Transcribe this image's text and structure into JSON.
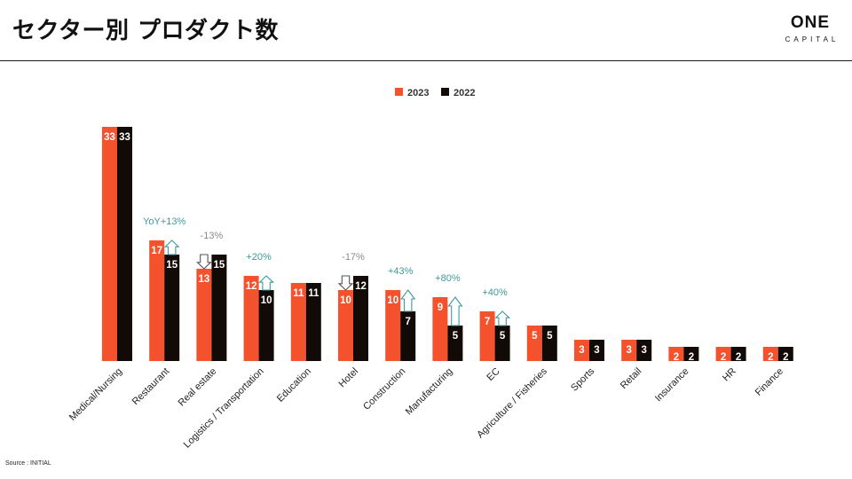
{
  "page": {
    "title": "セクター別 プロダクト数",
    "logo": {
      "main": "ONE",
      "sub": "CAPITAL"
    },
    "source": "Source : INITIAL"
  },
  "colors": {
    "series_2023": "#f4522d",
    "series_2022": "#120a07",
    "increase": "#3e9a9a",
    "decrease": "#8a8a8a"
  },
  "chart_data": {
    "type": "bar",
    "title": "",
    "xlabel": "",
    "ylabel": "",
    "ylim": [
      0,
      33
    ],
    "grid": false,
    "legend_position": "top-center",
    "categories": [
      "Medical/Nursing",
      "Restaurant",
      "Real estate",
      "Logistics / Transportation",
      "Education",
      "Hotel",
      "Construction",
      "Manufacturing",
      "EC",
      "Agriculture / Fisheries",
      "Sports",
      "Retail",
      "Insurance",
      "HR",
      "Finance"
    ],
    "series": [
      {
        "name": "2023",
        "values": [
          33,
          17,
          13,
          12,
          11,
          10,
          10,
          9,
          7,
          5,
          3,
          3,
          2,
          2,
          2
        ]
      },
      {
        "name": "2022",
        "values": [
          33,
          15,
          15,
          10,
          11,
          12,
          7,
          5,
          5,
          5,
          3,
          3,
          2,
          2,
          2
        ]
      }
    ],
    "annotations": [
      {
        "category": "Restaurant",
        "text": "YoY+13%",
        "direction": "up"
      },
      {
        "category": "Real estate",
        "text": "-13%",
        "direction": "down"
      },
      {
        "category": "Logistics / Transportation",
        "text": "+20%",
        "direction": "up"
      },
      {
        "category": "Hotel",
        "text": "-17%",
        "direction": "down"
      },
      {
        "category": "Construction",
        "text": "+43%",
        "direction": "up"
      },
      {
        "category": "Manufacturing",
        "text": "+80%",
        "direction": "up"
      },
      {
        "category": "EC",
        "text": "+40%",
        "direction": "up"
      }
    ]
  }
}
